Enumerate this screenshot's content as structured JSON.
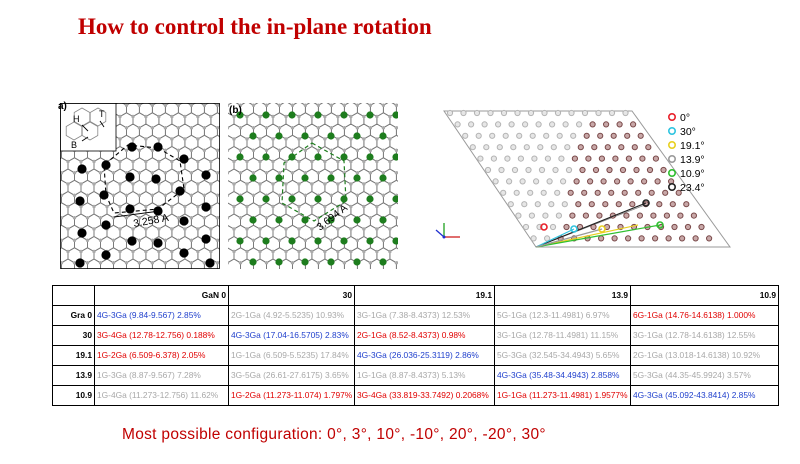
{
  "title": "How to control the in-plane rotation",
  "panel_a": {
    "label": "a)",
    "inset_labels": [
      "H",
      "B",
      "T"
    ],
    "distance_label": "3.258 A",
    "atom_color": "#000000"
  },
  "panel_b": {
    "label": "(b)",
    "distance_label": "3.694 A",
    "atom_color": "#1e7d1e"
  },
  "lattice_legend": [
    {
      "label": "0°",
      "color": "#e8202a"
    },
    {
      "label": "30°",
      "color": "#2ec4e0"
    },
    {
      "label": "19.1°",
      "color": "#e8d020"
    },
    {
      "label": "13.9°",
      "color": "#9a9a9a"
    },
    {
      "label": "10.9°",
      "color": "#30c030"
    },
    {
      "label": "23.4°",
      "color": "#222222"
    }
  ],
  "table": {
    "headers": [
      "GaN 0",
      "30",
      "19.1",
      "13.9",
      "10.9"
    ],
    "rows": [
      {
        "label": "Gra 0",
        "cells": [
          {
            "text": "4G-3Ga (9.84-9.567) 2.85%",
            "style": "blue"
          },
          {
            "text": "2G-1Ga (4.92-5.5235) 10.93%",
            "style": "gray"
          },
          {
            "text": "3G-1Ga (7.38-8.4373) 12.53%",
            "style": "gray"
          },
          {
            "text": "5G-1Ga (12.3-11.4981) 6.97%",
            "style": "gray"
          },
          {
            "text": "6G-1Ga (14.76-14.6138) 1.000%",
            "style": "red"
          }
        ]
      },
      {
        "label": "30",
        "cells": [
          {
            "text": "3G-4Ga (12.78-12.756) 0.188%",
            "style": "red"
          },
          {
            "text": "4G-3Ga (17.04-16.5705) 2.83%",
            "style": "blue"
          },
          {
            "text": "2G-1Ga (8.52-8.4373) 0.98%",
            "style": "red"
          },
          {
            "text": "3G-1Ga (12.78-11.4981) 11.15%",
            "style": "gray"
          },
          {
            "text": "3G-1Ga (12.78-14.6138) 12.55%",
            "style": "gray"
          }
        ]
      },
      {
        "label": "19.1",
        "cells": [
          {
            "text": "1G-2Ga (6.509-6.378) 2.05%",
            "style": "red"
          },
          {
            "text": "1G-1Ga (6.509-5.5235) 17.84%",
            "style": "gray"
          },
          {
            "text": "4G-3Ga (26.036-25.3119) 2.86%",
            "style": "blue"
          },
          {
            "text": "5G-3Ga (32.545-34.4943) 5.65%",
            "style": "gray"
          },
          {
            "text": "2G-1Ga (13.018-14.6138) 10.92%",
            "style": "gray"
          }
        ]
      },
      {
        "label": "13.9",
        "cells": [
          {
            "text": "1G-3Ga (8.87-9.567) 7.28%",
            "style": "gray"
          },
          {
            "text": "3G-5Ga (26.61-27.6175) 3.65%",
            "style": "gray"
          },
          {
            "text": "1G-1Ga (8.87-8.4373) 5.13%",
            "style": "gray"
          },
          {
            "text": "4G-3Ga (35.48-34.4943) 2.858%",
            "style": "blue"
          },
          {
            "text": "5G-3Ga (44.35-45.9924) 3.57%",
            "style": "gray"
          }
        ]
      },
      {
        "label": "10.9",
        "cells": [
          {
            "text": "1G-4Ga (11.273-12.756) 11.62%",
            "style": "gray"
          },
          {
            "text": "1G-2Ga (11.273-11.074) 1.797%",
            "style": "red"
          },
          {
            "text": "3G-4Ga (33.819-33.7492) 0.2068%",
            "style": "red"
          },
          {
            "text": "1G-1Ga (11.273-11.4981) 1.9577%",
            "style": "red"
          },
          {
            "text": "4G-3Ga (45.092-43.8414) 2.85%",
            "style": "blue"
          }
        ]
      }
    ]
  },
  "footer": "Most possible configuration:  0°, 3°, 10°, -10°, 20°, -20°, 30°"
}
